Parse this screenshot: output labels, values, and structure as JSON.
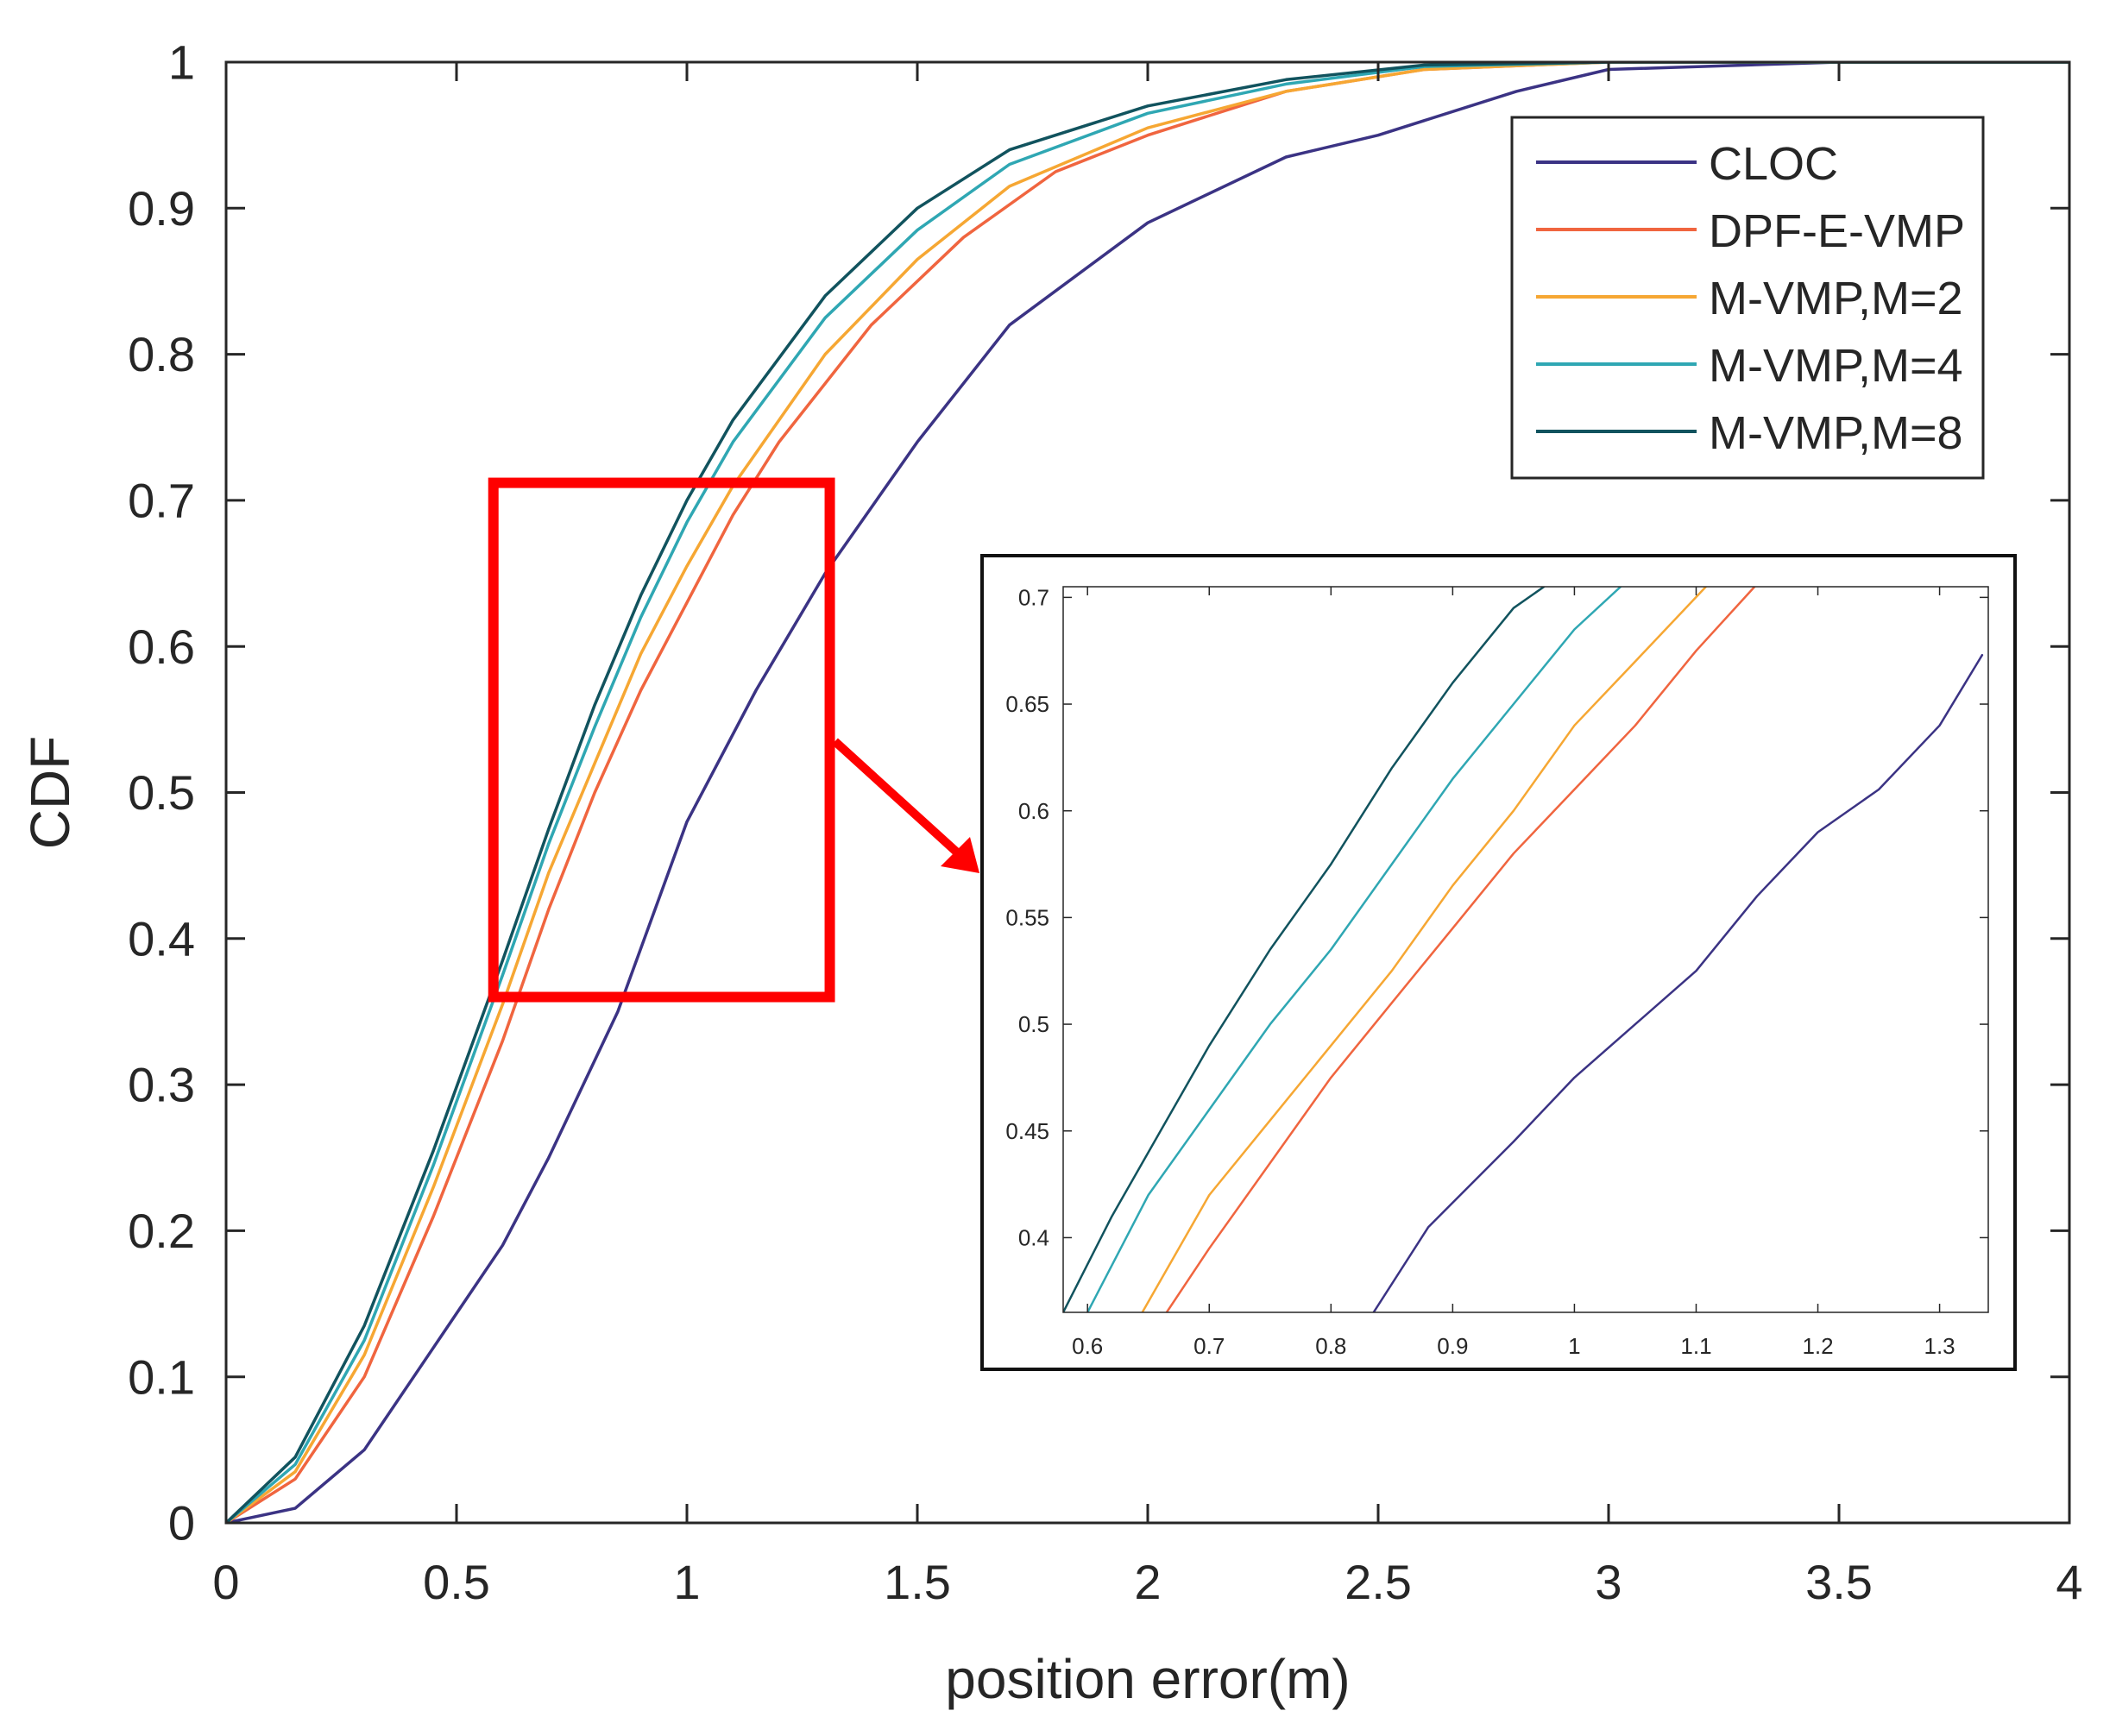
{
  "chart_data": [
    {
      "type": "line",
      "title": "",
      "xlabel": "position error(m)",
      "ylabel": "CDF",
      "xlim": [
        0,
        4
      ],
      "ylim": [
        0,
        1
      ],
      "xticks": [
        0,
        0.5,
        1,
        1.5,
        2,
        2.5,
        3,
        3.5,
        4
      ],
      "xtick_labels": [
        "0",
        "0.5",
        "1",
        "1.5",
        "2",
        "2.5",
        "3",
        "3.5",
        "4"
      ],
      "yticks": [
        0,
        0.1,
        0.2,
        0.3,
        0.4,
        0.5,
        0.6,
        0.7,
        0.8,
        0.9,
        1
      ],
      "ytick_labels": [
        "0",
        "0.1",
        "0.2",
        "0.3",
        "0.4",
        "0.5",
        "0.6",
        "0.7",
        "0.8",
        "0.9",
        "1"
      ],
      "grid": false,
      "legend_position": "top-right",
      "series": [
        {
          "name": "CLOC",
          "color": "#3b3384",
          "x": [
            0,
            0.15,
            0.3,
            0.45,
            0.6,
            0.7,
            0.85,
            1.0,
            1.15,
            1.3,
            1.5,
            1.7,
            2.0,
            2.3,
            2.5,
            2.8,
            3.0,
            3.5,
            4.0
          ],
          "y": [
            0,
            0.01,
            0.05,
            0.12,
            0.19,
            0.25,
            0.35,
            0.48,
            0.57,
            0.65,
            0.74,
            0.82,
            0.89,
            0.935,
            0.95,
            0.98,
            0.995,
            1.0,
            1.0
          ]
        },
        {
          "name": "DPF-E-VMP",
          "color": "#f0653f",
          "x": [
            0,
            0.15,
            0.3,
            0.45,
            0.6,
            0.7,
            0.8,
            0.9,
            1.0,
            1.1,
            1.2,
            1.4,
            1.6,
            1.8,
            2.0,
            2.3,
            2.6,
            3.0,
            4.0
          ],
          "y": [
            0,
            0.03,
            0.1,
            0.21,
            0.33,
            0.42,
            0.5,
            0.57,
            0.63,
            0.69,
            0.74,
            0.82,
            0.88,
            0.925,
            0.95,
            0.98,
            0.995,
            1.0,
            1.0
          ]
        },
        {
          "name": "M-VMP,M=2",
          "color": "#f6a733",
          "x": [
            0,
            0.15,
            0.3,
            0.45,
            0.6,
            0.7,
            0.8,
            0.9,
            1.0,
            1.1,
            1.3,
            1.5,
            1.7,
            2.0,
            2.3,
            2.6,
            3.0,
            4.0
          ],
          "y": [
            0,
            0.035,
            0.115,
            0.23,
            0.355,
            0.445,
            0.52,
            0.595,
            0.655,
            0.71,
            0.8,
            0.865,
            0.915,
            0.955,
            0.98,
            0.995,
            1.0,
            1.0
          ]
        },
        {
          "name": "M-VMP,M=4",
          "color": "#2fa7b3",
          "x": [
            0,
            0.15,
            0.3,
            0.45,
            0.6,
            0.7,
            0.8,
            0.9,
            1.0,
            1.1,
            1.3,
            1.5,
            1.7,
            2.0,
            2.3,
            2.6,
            3.0,
            4.0
          ],
          "y": [
            0,
            0.04,
            0.125,
            0.245,
            0.375,
            0.465,
            0.545,
            0.62,
            0.685,
            0.74,
            0.825,
            0.885,
            0.93,
            0.965,
            0.985,
            0.997,
            1.0,
            1.0
          ]
        },
        {
          "name": "M-VMP,M=8",
          "color": "#11535e",
          "x": [
            0,
            0.15,
            0.3,
            0.45,
            0.6,
            0.7,
            0.8,
            0.9,
            1.0,
            1.1,
            1.3,
            1.5,
            1.7,
            2.0,
            2.3,
            2.6,
            3.0,
            4.0
          ],
          "y": [
            0,
            0.045,
            0.135,
            0.255,
            0.385,
            0.475,
            0.56,
            0.635,
            0.7,
            0.755,
            0.84,
            0.9,
            0.94,
            0.97,
            0.988,
            0.998,
            1.0,
            1.0
          ]
        }
      ],
      "annotations": [
        "zoom region x 0.58–1.33, y 0.36–0.71"
      ]
    },
    {
      "type": "line",
      "title": "",
      "xlabel": "",
      "ylabel": "",
      "xlim": [
        0.58,
        1.34
      ],
      "ylim": [
        0.365,
        0.705
      ],
      "xticks": [
        0.6,
        0.7,
        0.8,
        0.9,
        1,
        1.1,
        1.2,
        1.3
      ],
      "xtick_labels": [
        "0.6",
        "0.7",
        "0.8",
        "0.9",
        "1",
        "1.1",
        "1.2",
        "1.3"
      ],
      "yticks": [
        0.4,
        0.45,
        0.5,
        0.55,
        0.6,
        0.65,
        0.7
      ],
      "ytick_labels": [
        "0.4",
        "0.45",
        "0.5",
        "0.55",
        "0.6",
        "0.65",
        "0.7"
      ],
      "grid": false,
      "series": [
        {
          "name": "CLOC",
          "color": "#3b3384",
          "x": [
            0.835,
            0.88,
            0.95,
            1.0,
            1.05,
            1.1,
            1.15,
            1.2,
            1.25,
            1.3,
            1.335
          ],
          "y": [
            0.365,
            0.405,
            0.445,
            0.475,
            0.5,
            0.525,
            0.56,
            0.59,
            0.61,
            0.64,
            0.673
          ]
        },
        {
          "name": "DPF-E-VMP",
          "color": "#f0653f",
          "x": [
            0.665,
            0.7,
            0.75,
            0.8,
            0.85,
            0.9,
            0.95,
            1.0,
            1.05,
            1.1,
            1.148
          ],
          "y": [
            0.365,
            0.395,
            0.435,
            0.475,
            0.51,
            0.545,
            0.58,
            0.61,
            0.64,
            0.675,
            0.705
          ]
        },
        {
          "name": "M-VMP,M=2",
          "color": "#f6a733",
          "x": [
            0.645,
            0.7,
            0.75,
            0.8,
            0.85,
            0.9,
            0.95,
            1.0,
            1.05,
            1.108
          ],
          "y": [
            0.365,
            0.42,
            0.455,
            0.49,
            0.525,
            0.565,
            0.6,
            0.64,
            0.67,
            0.705
          ]
        },
        {
          "name": "M-VMP,M=4",
          "color": "#2fa7b3",
          "x": [
            0.6,
            0.65,
            0.7,
            0.75,
            0.8,
            0.85,
            0.9,
            0.95,
            1.0,
            1.038
          ],
          "y": [
            0.365,
            0.42,
            0.46,
            0.5,
            0.535,
            0.575,
            0.615,
            0.65,
            0.685,
            0.705
          ]
        },
        {
          "name": "M-VMP,M=8",
          "color": "#11535e",
          "x": [
            0.58,
            0.62,
            0.66,
            0.7,
            0.75,
            0.8,
            0.85,
            0.9,
            0.95,
            0.975
          ],
          "y": [
            0.365,
            0.41,
            0.45,
            0.49,
            0.535,
            0.575,
            0.62,
            0.66,
            0.695,
            0.705
          ]
        }
      ]
    }
  ]
}
